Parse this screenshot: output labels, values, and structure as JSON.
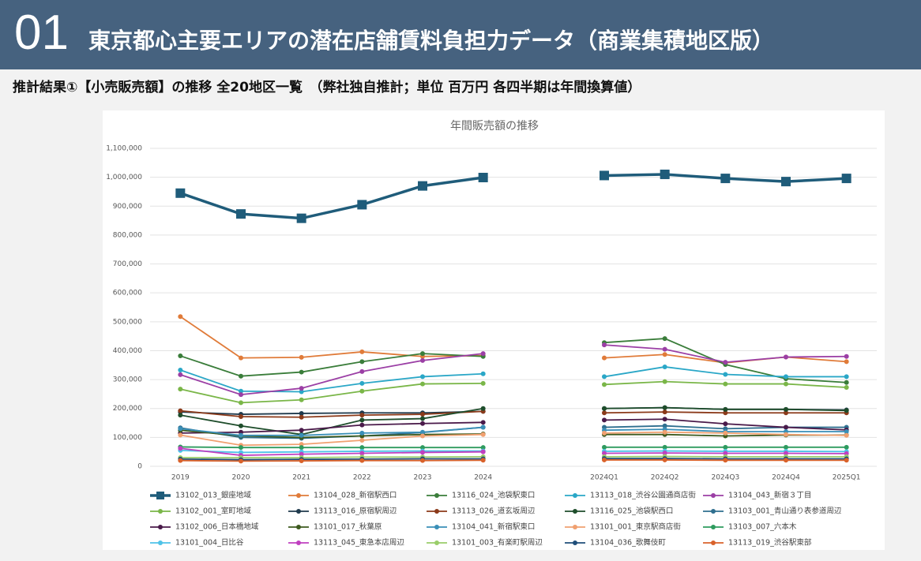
{
  "header": {
    "number": "01",
    "title": "東京都心主要エリアの潜在店舗賃料負担力データ（商業集積地区版）"
  },
  "subtitle": "推計結果①【小売販売額】の推移 全20地区一覧　（弊社独自推計；単位 百万円 各四半期は年間換算値）",
  "chart_data": {
    "type": "line",
    "title": "年間販売額の推移",
    "categories": [
      "2019",
      "2020",
      "2021",
      "2022",
      "2023",
      "2024",
      null,
      "2024Q1",
      "2024Q2",
      "2024Q3",
      "2024Q4",
      "2025Q1"
    ],
    "ylim": [
      0,
      1100000
    ],
    "yticks": [
      0,
      {
        "value": 100000,
        "label": "100,000"
      },
      {
        "value": 200000,
        "label": "200,000"
      },
      {
        "value": 300000,
        "label": "300,000"
      },
      {
        "value": 400000,
        "label": "400,000"
      },
      {
        "value": 500000,
        "label": "500,000"
      },
      {
        "value": 600000,
        "label": "600,000"
      },
      {
        "value": 700000,
        "label": "700,000"
      },
      {
        "value": 800000,
        "label": "800,000"
      },
      {
        "value": 900000,
        "label": "900,000"
      },
      {
        "value": 1000000,
        "label": "1,000,000"
      },
      {
        "value": 1100000,
        "label": "1,100,000"
      }
    ],
    "grid": true,
    "series": [
      {
        "name": "13102_013_銀座地域",
        "color": "#1f5c7a",
        "marker": "square",
        "values": [
          945000,
          873000,
          858000,
          905000,
          970000,
          999000,
          null,
          1006000,
          1010000,
          996000,
          985000,
          996000
        ]
      },
      {
        "name": "13104_028_新宿駅西口",
        "color": "#e07b39",
        "values": [
          518000,
          375000,
          377000,
          396000,
          380000,
          383000,
          null,
          375000,
          387000,
          358000,
          378000,
          362000
        ]
      },
      {
        "name": "13116_024_池袋駅東口",
        "color": "#3a7d3a",
        "values": [
          382000,
          312000,
          326000,
          362000,
          390000,
          380000,
          null,
          428000,
          442000,
          352000,
          303000,
          290000
        ]
      },
      {
        "name": "13113_018_渋谷公園通商店街",
        "color": "#2aa7c7",
        "values": [
          333000,
          260000,
          258000,
          287000,
          310000,
          320000,
          null,
          310000,
          344000,
          318000,
          310000,
          310000
        ]
      },
      {
        "name": "13104_043_新宿３丁目",
        "color": "#9b3fa5",
        "values": [
          317000,
          248000,
          270000,
          328000,
          366000,
          390000,
          null,
          420000,
          405000,
          360000,
          378000,
          380000
        ]
      },
      {
        "name": "13102_001_室町地域",
        "color": "#7ab648",
        "values": [
          267000,
          220000,
          230000,
          260000,
          285000,
          287000,
          null,
          283000,
          293000,
          285000,
          285000,
          273000
        ]
      },
      {
        "name": "13113_016_原宿駅周辺",
        "color": "#1f3a4d",
        "values": [
          188000,
          180000,
          183000,
          185000,
          185000,
          190000,
          null,
          200000,
          203000,
          197000,
          197000,
          195000
        ]
      },
      {
        "name": "13113_026_道玄坂周辺",
        "color": "#8b3a1a",
        "values": [
          192000,
          172000,
          170000,
          177000,
          180000,
          190000,
          null,
          185000,
          188000,
          185000,
          185000,
          185000
        ]
      },
      {
        "name": "13116_025_池袋駅西口",
        "color": "#1e4d2b",
        "values": [
          177000,
          140000,
          110000,
          160000,
          165000,
          200000,
          null,
          200000,
          203000,
          197000,
          197000,
          193000
        ]
      },
      {
        "name": "13103_001_青山通り表参道周辺",
        "color": "#2f6f8f",
        "values": [
          133000,
          100000,
          97000,
          105000,
          117000,
          135000,
          null,
          135000,
          140000,
          130000,
          135000,
          135000
        ]
      },
      {
        "name": "13102_006_日本橋地域",
        "color": "#4a1a4a",
        "values": [
          115000,
          118000,
          125000,
          143000,
          148000,
          152000,
          null,
          160000,
          163000,
          147000,
          135000,
          126000
        ]
      },
      {
        "name": "13101_017_秋葉原",
        "color": "#3d5a1e",
        "values": [
          125000,
          105000,
          100000,
          105000,
          110000,
          112000,
          null,
          110000,
          110000,
          105000,
          108000,
          108000
        ]
      },
      {
        "name": "13104_041_新宿駅東口",
        "color": "#3a8fb7",
        "values": [
          130000,
          107000,
          107000,
          115000,
          118000,
          135000,
          null,
          125000,
          128000,
          120000,
          120000,
          120000
        ]
      },
      {
        "name": "13101_001_東京駅商店街",
        "color": "#f0a070",
        "values": [
          108000,
          73000,
          76000,
          90000,
          105000,
          110000,
          null,
          115000,
          118000,
          115000,
          110000,
          107000
        ]
      },
      {
        "name": "13103_007_六本木",
        "color": "#2e9b5e",
        "values": [
          67000,
          65000,
          65000,
          65000,
          65000,
          65000,
          null,
          66000,
          66000,
          66000,
          66000,
          66000
        ]
      },
      {
        "name": "13101_004_日比谷",
        "color": "#4fc3e8",
        "values": [
          55000,
          48000,
          50000,
          52000,
          53000,
          53000,
          null,
          52000,
          53000,
          52000,
          52000,
          51000
        ]
      },
      {
        "name": "13113_045_東急本店周辺",
        "color": "#c040c0",
        "values": [
          62000,
          38000,
          42000,
          45000,
          48000,
          50000,
          null,
          45000,
          46000,
          45000,
          45000,
          44000
        ]
      },
      {
        "name": "13101_003_有楽町駅周辺",
        "color": "#9acd6a",
        "values": [
          30000,
          30000,
          30000,
          32000,
          32000,
          33000,
          null,
          33000,
          34000,
          33000,
          33000,
          33000
        ]
      },
      {
        "name": "13104_036_歌舞伎町",
        "color": "#1f4e79",
        "values": [
          25000,
          23000,
          24000,
          25000,
          26000,
          26000,
          null,
          27000,
          27000,
          26000,
          26000,
          26000
        ]
      },
      {
        "name": "13113_019_渋谷駅東部",
        "color": "#d9622b",
        "values": [
          20000,
          18000,
          19000,
          20000,
          20000,
          21000,
          null,
          22000,
          22000,
          21000,
          21000,
          21000
        ]
      }
    ]
  }
}
